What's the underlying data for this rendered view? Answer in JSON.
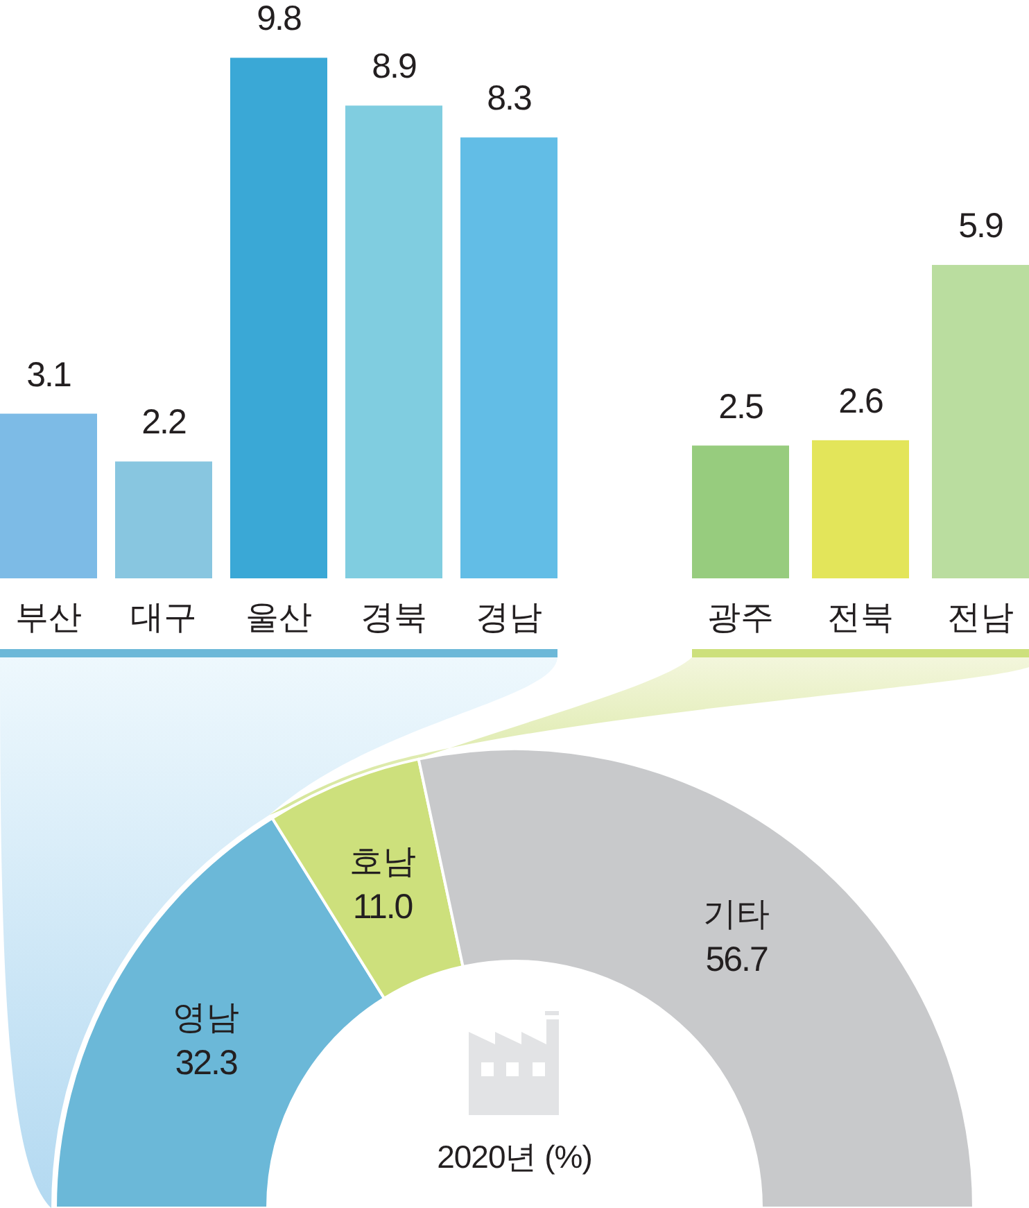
{
  "chart_data": [
    {
      "type": "bar",
      "categories": [
        "부산",
        "대구",
        "울산",
        "경북",
        "경남"
      ],
      "values": [
        3.1,
        2.2,
        9.8,
        8.9,
        8.3
      ],
      "colors": [
        "#7dbbe6",
        "#88c6e0",
        "#3aa8d6",
        "#80cde0",
        "#62bde6"
      ],
      "data_labels": true
    },
    {
      "type": "bar",
      "categories": [
        "광주",
        "전북",
        "전남"
      ],
      "values": [
        2.5,
        2.6,
        5.9
      ],
      "colors": [
        "#97cc7e",
        "#e3e55a",
        "#badd9f"
      ],
      "data_labels": true
    },
    {
      "type": "donut",
      "categories": [
        "영남",
        "호남",
        "기타"
      ],
      "values": [
        32.3,
        11.0,
        56.7
      ],
      "value_labels": [
        "32.3",
        "11.0",
        "56.7"
      ],
      "colors": [
        "#6bb8d8",
        "#cde07c",
        "#c8c9cb"
      ],
      "annotations": [
        "2020년 (%)"
      ]
    }
  ]
}
